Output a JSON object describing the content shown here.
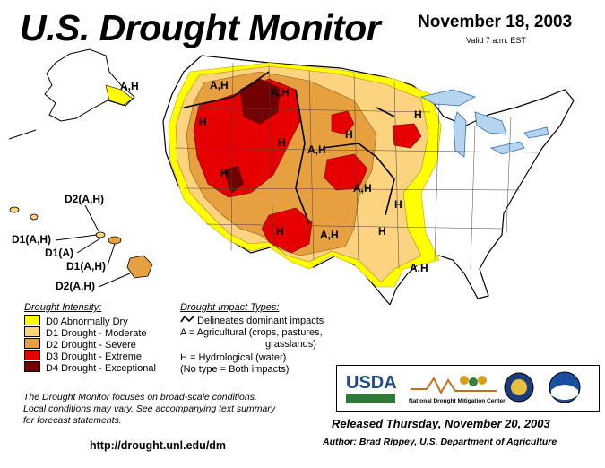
{
  "header": {
    "title": "U.S. Drought Monitor",
    "date": "November 18, 2003",
    "valid": "Valid 7 a.m. EST"
  },
  "colors": {
    "d0": "#ffff00",
    "d1": "#fcd37f",
    "d2": "#e6a040",
    "d3": "#e60000",
    "d4": "#730000",
    "water": "#b4d4f0",
    "land": "#ffffff"
  },
  "map_labels": {
    "alaska": "A,H",
    "nw_montana": "A,H",
    "central_montana": "A,H",
    "idaho": "H",
    "wyoming": "H",
    "dakotas": "A,H",
    "nebraska": "A,H",
    "minnesota": "H",
    "utah": "H",
    "iowa": "H",
    "missouri": "H",
    "new_mexico": "H",
    "texas": "A,H",
    "arkansas": "H",
    "louisiana": "A,H",
    "hawaii_1": "D2(A,H)",
    "hawaii_2": "D1(A,H)",
    "hawaii_3": "D1(A)",
    "hawaii_4": "D1(A,H)",
    "hawaii_5": "D2(A,H)"
  },
  "legend": {
    "title": "Drought Intensity:",
    "items": [
      {
        "label": "D0 Abnormally Dry"
      },
      {
        "label": "D1 Drought - Moderate"
      },
      {
        "label": "D2 Drought - Severe"
      },
      {
        "label": "D3 Drought - Extreme"
      },
      {
        "label": "D4 Drought - Exceptional"
      }
    ]
  },
  "impacts": {
    "title": "Drought Impact Types:",
    "line": "Delineates dominant impacts",
    "ag1": "A = Agricultural (crops, pastures,",
    "ag2": "grasslands)",
    "hyd": "H = Hydrological (water)",
    "both": "(No type = Both impacts)"
  },
  "note": {
    "line1": "The Drought Monitor focuses on broad-scale conditions.",
    "line2": "Local conditions may vary.  See accompanying text summary",
    "line3": "for forecast statements."
  },
  "footer": {
    "url": "http://drought.unl.edu/dm",
    "released": "Released Thursday, November 20, 2003",
    "author": "Author:  Brad Rippey, U.S. Department of Agriculture"
  },
  "logos": {
    "usda": "USDA",
    "ndmc": "National Drought Mitigation Center"
  }
}
